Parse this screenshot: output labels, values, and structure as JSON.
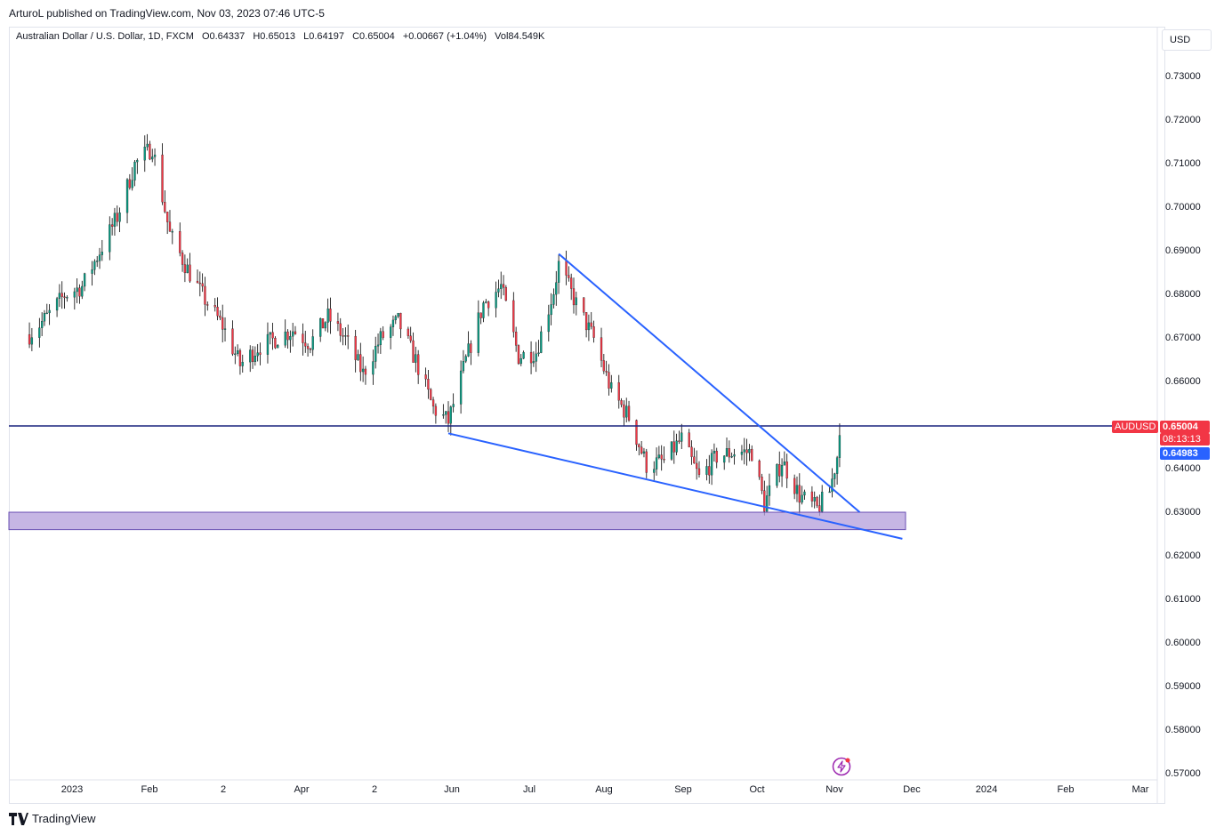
{
  "header": {
    "published": "ArturoL published on TradingView.com, Nov 03, 2023 07:46 UTC-5"
  },
  "legend": {
    "symbol": "Australian Dollar / U.S. Dollar, 1D, FXCM",
    "open": "O0.64337",
    "high": "H0.65013",
    "low": "L0.64197",
    "close": "C0.65004",
    "change": "+0.00667 (+1.04%)",
    "volume": "Vol84.549K"
  },
  "currency_button": "USD",
  "price_axis": [
    "0.73000",
    "0.72000",
    "0.71000",
    "0.70000",
    "0.69000",
    "0.68000",
    "0.67000",
    "0.66000",
    "0.65000",
    "0.64000",
    "0.63000",
    "0.62000",
    "0.61000",
    "0.60000",
    "0.59000",
    "0.58000",
    "0.57000"
  ],
  "time_axis": [
    "2023",
    "Feb",
    "2",
    "Apr",
    "2",
    "Jun",
    "Jul",
    "Aug",
    "Sep",
    "Oct",
    "Nov",
    "Dec",
    "2024",
    "Feb",
    "Mar"
  ],
  "symbol_tag": "AUDUSD",
  "last_price": "0.65004",
  "countdown": "08:13:13",
  "line_price": "0.64983",
  "footer_brand": "TradingView",
  "colors": {
    "up": "#089981",
    "down": "#f23645",
    "trendline": "#2962ff",
    "hline": "#1a237e",
    "zone": "#b39ddb"
  },
  "chart_data": {
    "type": "candlestick",
    "symbol": "AUDUSD",
    "timeframe": "1D",
    "ylim": [
      0.57,
      0.74
    ],
    "x_range": [
      "2022-12-15",
      "2024-03-31"
    ],
    "grid": false,
    "horizontal_line": 0.65,
    "zone": [
      0.6262,
      0.6302
    ],
    "trendlines": [
      {
        "from": {
          "date": "2023-07-14",
          "price": 0.6895
        },
        "to": {
          "date": "2023-11-11",
          "price": 0.6302
        }
      },
      {
        "from": {
          "date": "2023-05-31",
          "price": 0.6483
        },
        "to": {
          "date": "2023-11-28",
          "price": 0.6241
        }
      }
    ],
    "close_path": [
      [
        "2022-12-15",
        0.671
      ],
      [
        "2022-12-22",
        0.675
      ],
      [
        "2022-12-29",
        0.68
      ],
      [
        "2023-01-05",
        0.682
      ],
      [
        "2023-01-12",
        0.69
      ],
      [
        "2023-01-19",
        0.698
      ],
      [
        "2023-01-26",
        0.71
      ],
      [
        "2023-02-02",
        0.714
      ],
      [
        "2023-02-09",
        0.694
      ],
      [
        "2023-02-16",
        0.686
      ],
      [
        "2023-02-23",
        0.679
      ],
      [
        "2023-03-02",
        0.673
      ],
      [
        "2023-03-09",
        0.664
      ],
      [
        "2023-03-16",
        0.668
      ],
      [
        "2023-03-23",
        0.67
      ],
      [
        "2023-03-30",
        0.672
      ],
      [
        "2023-04-06",
        0.669
      ],
      [
        "2023-04-13",
        0.675
      ],
      [
        "2023-04-20",
        0.67
      ],
      [
        "2023-04-27",
        0.662
      ],
      [
        "2023-05-04",
        0.67
      ],
      [
        "2023-05-11",
        0.674
      ],
      [
        "2023-05-18",
        0.665
      ],
      [
        "2023-05-25",
        0.654
      ],
      [
        "2023-05-31",
        0.651
      ],
      [
        "2023-06-07",
        0.665
      ],
      [
        "2023-06-14",
        0.678
      ],
      [
        "2023-06-21",
        0.682
      ],
      [
        "2023-06-28",
        0.666
      ],
      [
        "2023-07-05",
        0.667
      ],
      [
        "2023-07-12",
        0.681
      ],
      [
        "2023-07-14",
        0.687
      ],
      [
        "2023-07-21",
        0.678
      ],
      [
        "2023-07-28",
        0.67
      ],
      [
        "2023-08-04",
        0.658
      ],
      [
        "2023-08-11",
        0.652
      ],
      [
        "2023-08-18",
        0.641
      ],
      [
        "2023-08-25",
        0.642
      ],
      [
        "2023-09-01",
        0.647
      ],
      [
        "2023-09-08",
        0.638
      ],
      [
        "2023-09-15",
        0.643
      ],
      [
        "2023-09-22",
        0.644
      ],
      [
        "2023-09-29",
        0.644
      ],
      [
        "2023-10-04",
        0.632
      ],
      [
        "2023-10-11",
        0.642
      ],
      [
        "2023-10-18",
        0.634
      ],
      [
        "2023-10-25",
        0.631
      ],
      [
        "2023-10-30",
        0.635
      ],
      [
        "2023-11-02",
        0.643
      ],
      [
        "2023-11-03",
        0.65
      ]
    ]
  }
}
